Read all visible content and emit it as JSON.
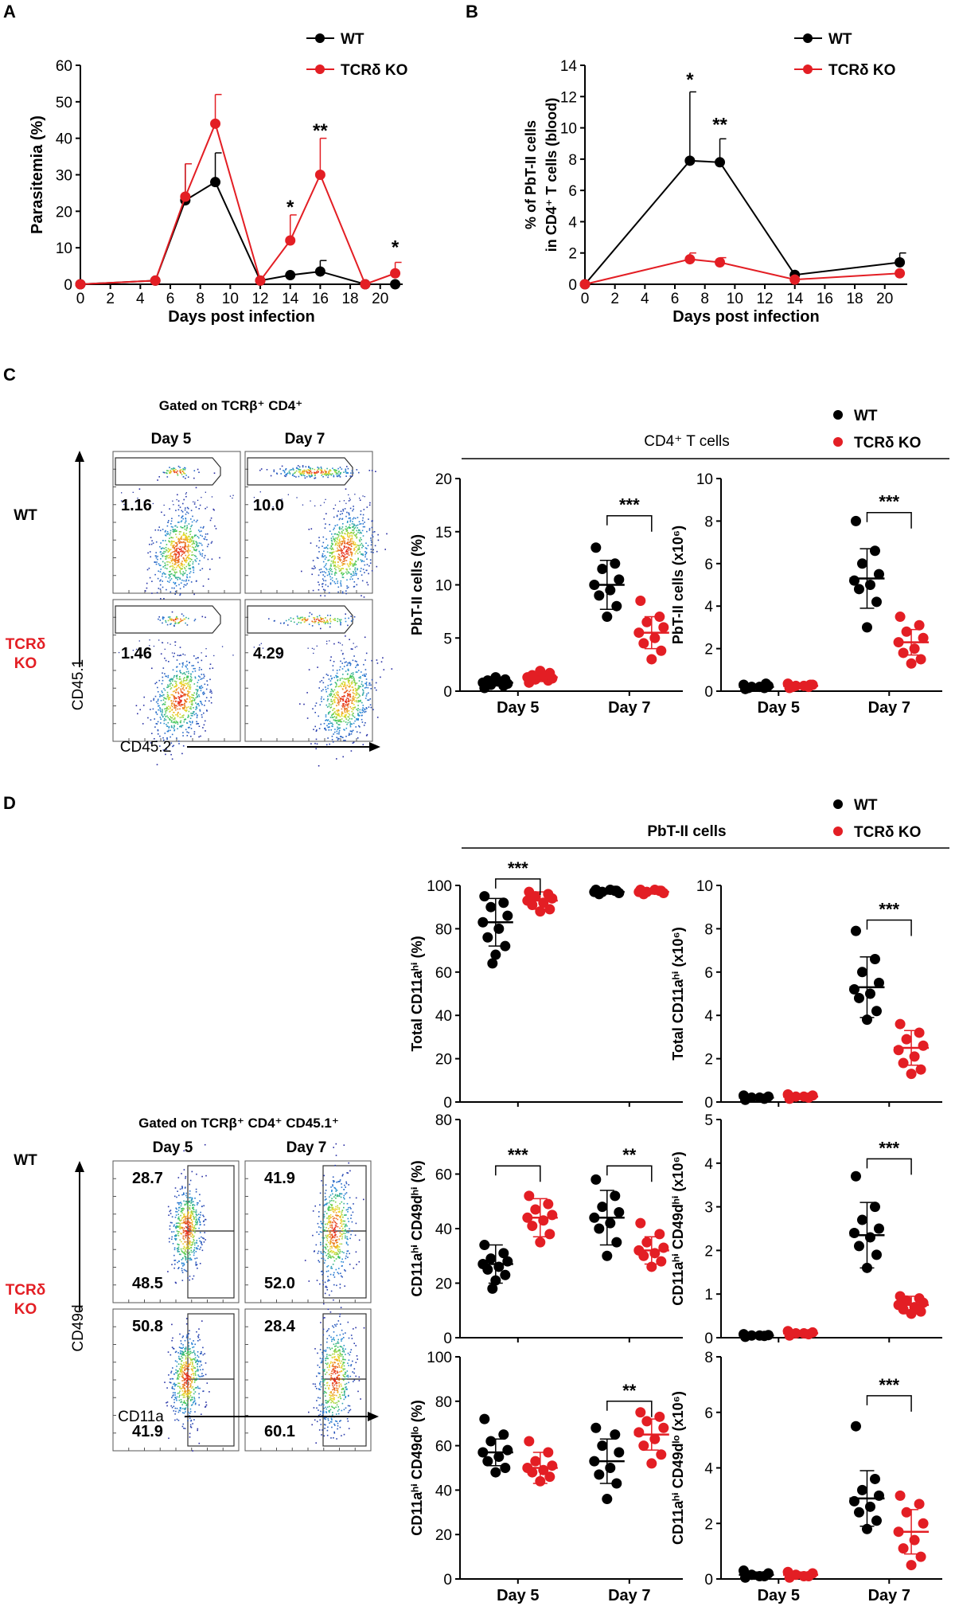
{
  "colors": {
    "wt": "#000000",
    "ko": "#e31e24",
    "panel_border": "#333333"
  },
  "panels": {
    "A": "A",
    "B": "B",
    "C": "C",
    "D": "D"
  },
  "legend": {
    "wt": "WT",
    "ko": "TCRδ KO"
  },
  "section_titles": {
    "c": "CD4⁺ T cells",
    "d": "PbT-II cells"
  },
  "chart_data": [
    {
      "id": "A",
      "type": "line",
      "xlabel": "Days post infection",
      "ylabel": "Parasitemia (%)",
      "xlim": [
        0,
        21.5
      ],
      "ylim": [
        0,
        60
      ],
      "xticks": [
        0,
        2,
        4,
        6,
        8,
        10,
        12,
        14,
        16,
        18,
        20
      ],
      "yticks": [
        0,
        10,
        20,
        30,
        40,
        50,
        60
      ],
      "series": [
        {
          "name": "WT",
          "color": "#000000",
          "x": [
            0,
            5,
            7,
            9,
            12,
            14,
            16,
            19,
            21
          ],
          "y": [
            0,
            1,
            23,
            28,
            1,
            2.5,
            3.5,
            0,
            0
          ],
          "err": [
            0,
            0,
            10,
            8,
            0,
            0,
            3,
            0,
            0
          ]
        },
        {
          "name": "TCRδ KO",
          "color": "#e31e24",
          "x": [
            0,
            5,
            7,
            9,
            12,
            14,
            16,
            19,
            21
          ],
          "y": [
            0,
            1,
            24,
            44,
            1,
            12,
            30,
            0,
            3
          ],
          "err": [
            0,
            0,
            9,
            8,
            0,
            7,
            10,
            0,
            3
          ]
        }
      ],
      "annotations": [
        {
          "x": 14,
          "y": 22,
          "text": "*"
        },
        {
          "x": 16,
          "y": 43,
          "text": "**"
        },
        {
          "x": 21,
          "y": 11,
          "text": "*"
        }
      ]
    },
    {
      "id": "B",
      "type": "line",
      "xlabel": "Days post infection",
      "ylabel_lines": [
        "% of PbT-II cells",
        "in CD4⁺ T cells (blood)"
      ],
      "xlim": [
        0,
        21.5
      ],
      "ylim": [
        0,
        14
      ],
      "xticks": [
        0,
        2,
        4,
        6,
        8,
        10,
        12,
        14,
        16,
        18,
        20
      ],
      "yticks": [
        0,
        2,
        4,
        6,
        8,
        10,
        12,
        14
      ],
      "series": [
        {
          "name": "WT",
          "color": "#000000",
          "x": [
            0,
            7,
            9,
            14,
            21
          ],
          "y": [
            0,
            7.9,
            7.8,
            0.6,
            1.4
          ],
          "err": [
            0,
            4.4,
            1.5,
            0,
            0.6
          ]
        },
        {
          "name": "TCRδ KO",
          "color": "#e31e24",
          "x": [
            0,
            7,
            9,
            14,
            21
          ],
          "y": [
            0,
            1.6,
            1.4,
            0.3,
            0.7
          ],
          "err": [
            0,
            0.4,
            0.3,
            0,
            0
          ]
        }
      ],
      "annotations": [
        {
          "x": 7,
          "y": 13.3,
          "text": "*"
        },
        {
          "x": 9,
          "y": 10.4,
          "text": "**"
        }
      ]
    },
    {
      "id": "C1",
      "type": "scatter",
      "categories": [
        "Day 5",
        "Day 7"
      ],
      "ylabel": "PbT-II cells (%)",
      "ylim": [
        0,
        20
      ],
      "yticks": [
        0,
        5,
        10,
        15,
        20
      ],
      "groups": [
        {
          "category": "Day 5",
          "series": "WT",
          "mean": 0.8,
          "sd": 0.3,
          "values": [
            0.3,
            0.5,
            0.6,
            0.7,
            0.8,
            0.9,
            1.0,
            1.1,
            1.3
          ]
        },
        {
          "category": "Day 5",
          "series": "TCRδ KO",
          "mean": 1.3,
          "sd": 0.4,
          "values": [
            0.8,
            1.0,
            1.1,
            1.2,
            1.3,
            1.4,
            1.5,
            1.7,
            1.9
          ]
        },
        {
          "category": "Day 7",
          "series": "WT",
          "mean": 10.0,
          "sd": 2.3,
          "values": [
            13.5,
            12.0,
            11.5,
            10.5,
            10.0,
            9.5,
            9.0,
            8.0,
            7.0
          ]
        },
        {
          "category": "Day 7",
          "series": "TCRδ KO",
          "mean": 5.5,
          "sd": 1.5,
          "values": [
            8.5,
            7.0,
            6.5,
            6.0,
            5.5,
            5.0,
            4.5,
            3.8,
            3.0
          ]
        }
      ],
      "significance": [
        {
          "category": "Day 7",
          "text": "***",
          "y": 16.5
        }
      ]
    },
    {
      "id": "C2",
      "type": "scatter",
      "categories": [
        "Day 5",
        "Day 7"
      ],
      "ylabel": "PbT-II cells (x10⁶)",
      "ylim": [
        0,
        10
      ],
      "yticks": [
        0,
        2,
        4,
        6,
        8,
        10
      ],
      "groups": [
        {
          "category": "Day 5",
          "series": "WT",
          "mean": 0.2,
          "sd": 0.1,
          "values": [
            0.1,
            0.15,
            0.2,
            0.25,
            0.3,
            0.2,
            0.15,
            0.35
          ]
        },
        {
          "category": "Day 5",
          "series": "TCRδ KO",
          "mean": 0.25,
          "sd": 0.1,
          "values": [
            0.15,
            0.2,
            0.25,
            0.3,
            0.35,
            0.25,
            0.2,
            0.3
          ]
        },
        {
          "category": "Day 7",
          "series": "WT",
          "mean": 5.3,
          "sd": 1.4,
          "values": [
            8.0,
            6.6,
            6.0,
            5.5,
            5.2,
            5.0,
            4.8,
            4.2,
            3.0
          ]
        },
        {
          "category": "Day 7",
          "series": "TCRδ KO",
          "mean": 2.3,
          "sd": 0.6,
          "values": [
            3.5,
            3.1,
            2.8,
            2.5,
            2.3,
            2.0,
            1.8,
            1.5,
            1.3
          ]
        }
      ],
      "significance": [
        {
          "category": "Day 7",
          "text": "***",
          "y": 8.4
        }
      ]
    },
    {
      "id": "D1",
      "type": "scatter",
      "categories": [
        "Day 5",
        "Day 7"
      ],
      "ylabel": "Total CD11aʰⁱ (%)",
      "ylim": [
        0,
        100
      ],
      "yticks": [
        0,
        20,
        40,
        60,
        80,
        100
      ],
      "show_xlabels": false,
      "groups": [
        {
          "category": "Day 5",
          "series": "WT",
          "mean": 83,
          "sd": 11,
          "values": [
            95,
            92,
            90,
            86,
            83,
            80,
            76,
            72,
            68,
            64
          ]
        },
        {
          "category": "Day 5",
          "series": "TCRδ KO",
          "mean": 93,
          "sd": 4,
          "values": [
            97,
            96,
            95,
            94,
            93,
            92,
            91,
            89,
            88
          ]
        },
        {
          "category": "Day 7",
          "series": "WT",
          "mean": 97,
          "sd": 1,
          "values": [
            98,
            97.5,
            97,
            96.5,
            97,
            98,
            96,
            97.5
          ]
        },
        {
          "category": "Day 7",
          "series": "TCRδ KO",
          "mean": 97,
          "sd": 1,
          "values": [
            98,
            97.5,
            97,
            96.5,
            97,
            98,
            96,
            97.5
          ]
        }
      ],
      "significance": [
        {
          "category": "Day 5",
          "text": "***",
          "y": 103
        }
      ]
    },
    {
      "id": "D2",
      "type": "scatter",
      "categories": [
        "Day 5",
        "Day 7"
      ],
      "ylabel": "Total CD11aʰⁱ (x10⁶)",
      "ylim": [
        0,
        10
      ],
      "yticks": [
        0,
        2,
        4,
        6,
        8,
        10
      ],
      "show_xlabels": false,
      "groups": [
        {
          "category": "Day 5",
          "series": "WT",
          "mean": 0.2,
          "sd": 0.1,
          "values": [
            0.1,
            0.15,
            0.2,
            0.25,
            0.3,
            0.2
          ]
        },
        {
          "category": "Day 5",
          "series": "TCRδ KO",
          "mean": 0.25,
          "sd": 0.1,
          "values": [
            0.15,
            0.2,
            0.25,
            0.3,
            0.35,
            0.25
          ]
        },
        {
          "category": "Day 7",
          "series": "WT",
          "mean": 5.3,
          "sd": 1.4,
          "values": [
            7.9,
            6.6,
            6.0,
            5.5,
            5.2,
            5.0,
            4.8,
            4.2,
            3.8
          ]
        },
        {
          "category": "Day 7",
          "series": "TCRδ KO",
          "mean": 2.5,
          "sd": 0.8,
          "values": [
            3.6,
            3.2,
            2.9,
            2.6,
            2.4,
            2.1,
            1.8,
            1.5,
            1.3
          ]
        }
      ],
      "significance": [
        {
          "category": "Day 7",
          "text": "***",
          "y": 8.4
        }
      ]
    },
    {
      "id": "D3",
      "type": "scatter",
      "categories": [
        "Day 5",
        "Day 7"
      ],
      "ylabel": "CD11aʰⁱ CD49dʰⁱ (%)",
      "ylim": [
        0,
        80
      ],
      "yticks": [
        0,
        20,
        40,
        60,
        80
      ],
      "show_xlabels": false,
      "groups": [
        {
          "category": "Day 5",
          "series": "WT",
          "mean": 27,
          "sd": 7,
          "values": [
            34,
            31,
            29,
            28,
            27,
            26,
            25,
            23,
            21,
            18
          ]
        },
        {
          "category": "Day 5",
          "series": "TCRδ KO",
          "mean": 44,
          "sd": 7,
          "values": [
            52,
            49,
            47,
            45,
            44,
            43,
            41,
            38,
            35
          ]
        },
        {
          "category": "Day 7",
          "series": "WT",
          "mean": 44,
          "sd": 10,
          "values": [
            58,
            52,
            48,
            46,
            44,
            42,
            40,
            35,
            30
          ]
        },
        {
          "category": "Day 7",
          "series": "TCRδ KO",
          "mean": 32,
          "sd": 5,
          "values": [
            42,
            38,
            35,
            33,
            32,
            31,
            30,
            28,
            26
          ]
        }
      ],
      "significance": [
        {
          "category": "Day 5",
          "text": "***",
          "y": 63
        },
        {
          "category": "Day 7",
          "text": "**",
          "y": 63
        }
      ]
    },
    {
      "id": "D4",
      "type": "scatter",
      "categories": [
        "Day 5",
        "Day 7"
      ],
      "ylabel": "CD11aʰⁱ CD49dʰⁱ (x10⁶)",
      "ylim": [
        0,
        5
      ],
      "yticks": [
        0,
        1,
        2,
        3,
        4,
        5
      ],
      "show_xlabels": false,
      "groups": [
        {
          "category": "Day 5",
          "series": "WT",
          "mean": 0.05,
          "sd": 0.03,
          "values": [
            0.02,
            0.04,
            0.05,
            0.06,
            0.08,
            0.05
          ]
        },
        {
          "category": "Day 5",
          "series": "TCRδ KO",
          "mean": 0.1,
          "sd": 0.05,
          "values": [
            0.05,
            0.08,
            0.1,
            0.12,
            0.15,
            0.1
          ]
        },
        {
          "category": "Day 7",
          "series": "WT",
          "mean": 2.35,
          "sd": 0.75,
          "values": [
            3.7,
            3.0,
            2.7,
            2.5,
            2.4,
            2.3,
            2.1,
            1.9,
            1.6
          ]
        },
        {
          "category": "Day 7",
          "series": "TCRδ KO",
          "mean": 0.75,
          "sd": 0.2,
          "values": [
            0.95,
            0.9,
            0.85,
            0.8,
            0.75,
            0.7,
            0.65,
            0.6,
            0.55
          ]
        }
      ],
      "significance": [
        {
          "category": "Day 7",
          "text": "***",
          "y": 4.1
        }
      ]
    },
    {
      "id": "D5",
      "type": "scatter",
      "categories": [
        "Day 5",
        "Day 7"
      ],
      "ylabel": "CD11aʰⁱ CD49dˡᵒ (%)",
      "ylim": [
        0,
        100
      ],
      "yticks": [
        0,
        20,
        40,
        60,
        80,
        100
      ],
      "groups": [
        {
          "category": "Day 5",
          "series": "WT",
          "mean": 57,
          "sd": 6,
          "values": [
            72,
            65,
            62,
            58,
            57,
            55,
            53,
            50,
            48
          ]
        },
        {
          "category": "Day 5",
          "series": "TCRδ KO",
          "mean": 50,
          "sd": 7,
          "values": [
            62,
            57,
            53,
            51,
            50,
            49,
            48,
            46,
            44
          ]
        },
        {
          "category": "Day 7",
          "series": "WT",
          "mean": 53,
          "sd": 10,
          "values": [
            68,
            65,
            60,
            57,
            53,
            50,
            47,
            43,
            36
          ]
        },
        {
          "category": "Day 7",
          "series": "TCRδ KO",
          "mean": 65,
          "sd": 7,
          "values": [
            75,
            73,
            71,
            68,
            66,
            63,
            60,
            56,
            52
          ]
        }
      ],
      "significance": [
        {
          "category": "Day 7",
          "text": "**",
          "y": 80
        }
      ]
    },
    {
      "id": "D6",
      "type": "scatter",
      "categories": [
        "Day 5",
        "Day 7"
      ],
      "ylabel": "CD11aʰⁱ CD49dˡᵒ (x10⁶)",
      "ylim": [
        0,
        8
      ],
      "yticks": [
        0,
        2,
        4,
        6,
        8
      ],
      "groups": [
        {
          "category": "Day 5",
          "series": "WT",
          "mean": 0.15,
          "sd": 0.1,
          "values": [
            0.05,
            0.1,
            0.15,
            0.2,
            0.3,
            0.1
          ]
        },
        {
          "category": "Day 5",
          "series": "TCRδ KO",
          "mean": 0.15,
          "sd": 0.1,
          "values": [
            0.05,
            0.1,
            0.15,
            0.2,
            0.25,
            0.1
          ]
        },
        {
          "category": "Day 7",
          "series": "WT",
          "mean": 2.9,
          "sd": 1.0,
          "values": [
            5.5,
            3.6,
            3.2,
            3.0,
            2.8,
            2.6,
            2.4,
            2.1,
            1.8
          ]
        },
        {
          "category": "Day 7",
          "series": "TCRδ KO",
          "mean": 1.7,
          "sd": 0.8,
          "values": [
            3.0,
            2.7,
            2.4,
            2.0,
            1.7,
            1.4,
            1.1,
            0.8,
            0.5
          ]
        }
      ],
      "significance": [
        {
          "category": "Day 7",
          "text": "***",
          "y": 6.6
        }
      ]
    }
  ],
  "flow": {
    "c": {
      "gate_title": "Gated on TCRβ⁺ CD4⁺",
      "columns": [
        "Day 5",
        "Day 7"
      ],
      "row_labels": {
        "wt": "WT",
        "ko_line1": "TCRδ",
        "ko_line2": "KO"
      },
      "y_axis": "CD45.1",
      "x_axis": "CD45.2",
      "gate_values": [
        [
          "1.16",
          "10.0"
        ],
        [
          "1.46",
          "4.29"
        ]
      ]
    },
    "d": {
      "gate_title": "Gated on TCRβ⁺ CD4⁺ CD45.1⁺",
      "columns": [
        "Day 5",
        "Day 7"
      ],
      "row_labels": {
        "wt": "WT",
        "ko_line1": "TCRδ",
        "ko_line2": "KO"
      },
      "y_axis": "CD49d",
      "x_axis": "CD11a",
      "gate_values_top": [
        [
          "28.7",
          "41.9"
        ],
        [
          "50.8",
          "28.4"
        ]
      ],
      "gate_values_bottom": [
        [
          "48.5",
          "52.0"
        ],
        [
          "41.9",
          "60.1"
        ]
      ]
    }
  }
}
